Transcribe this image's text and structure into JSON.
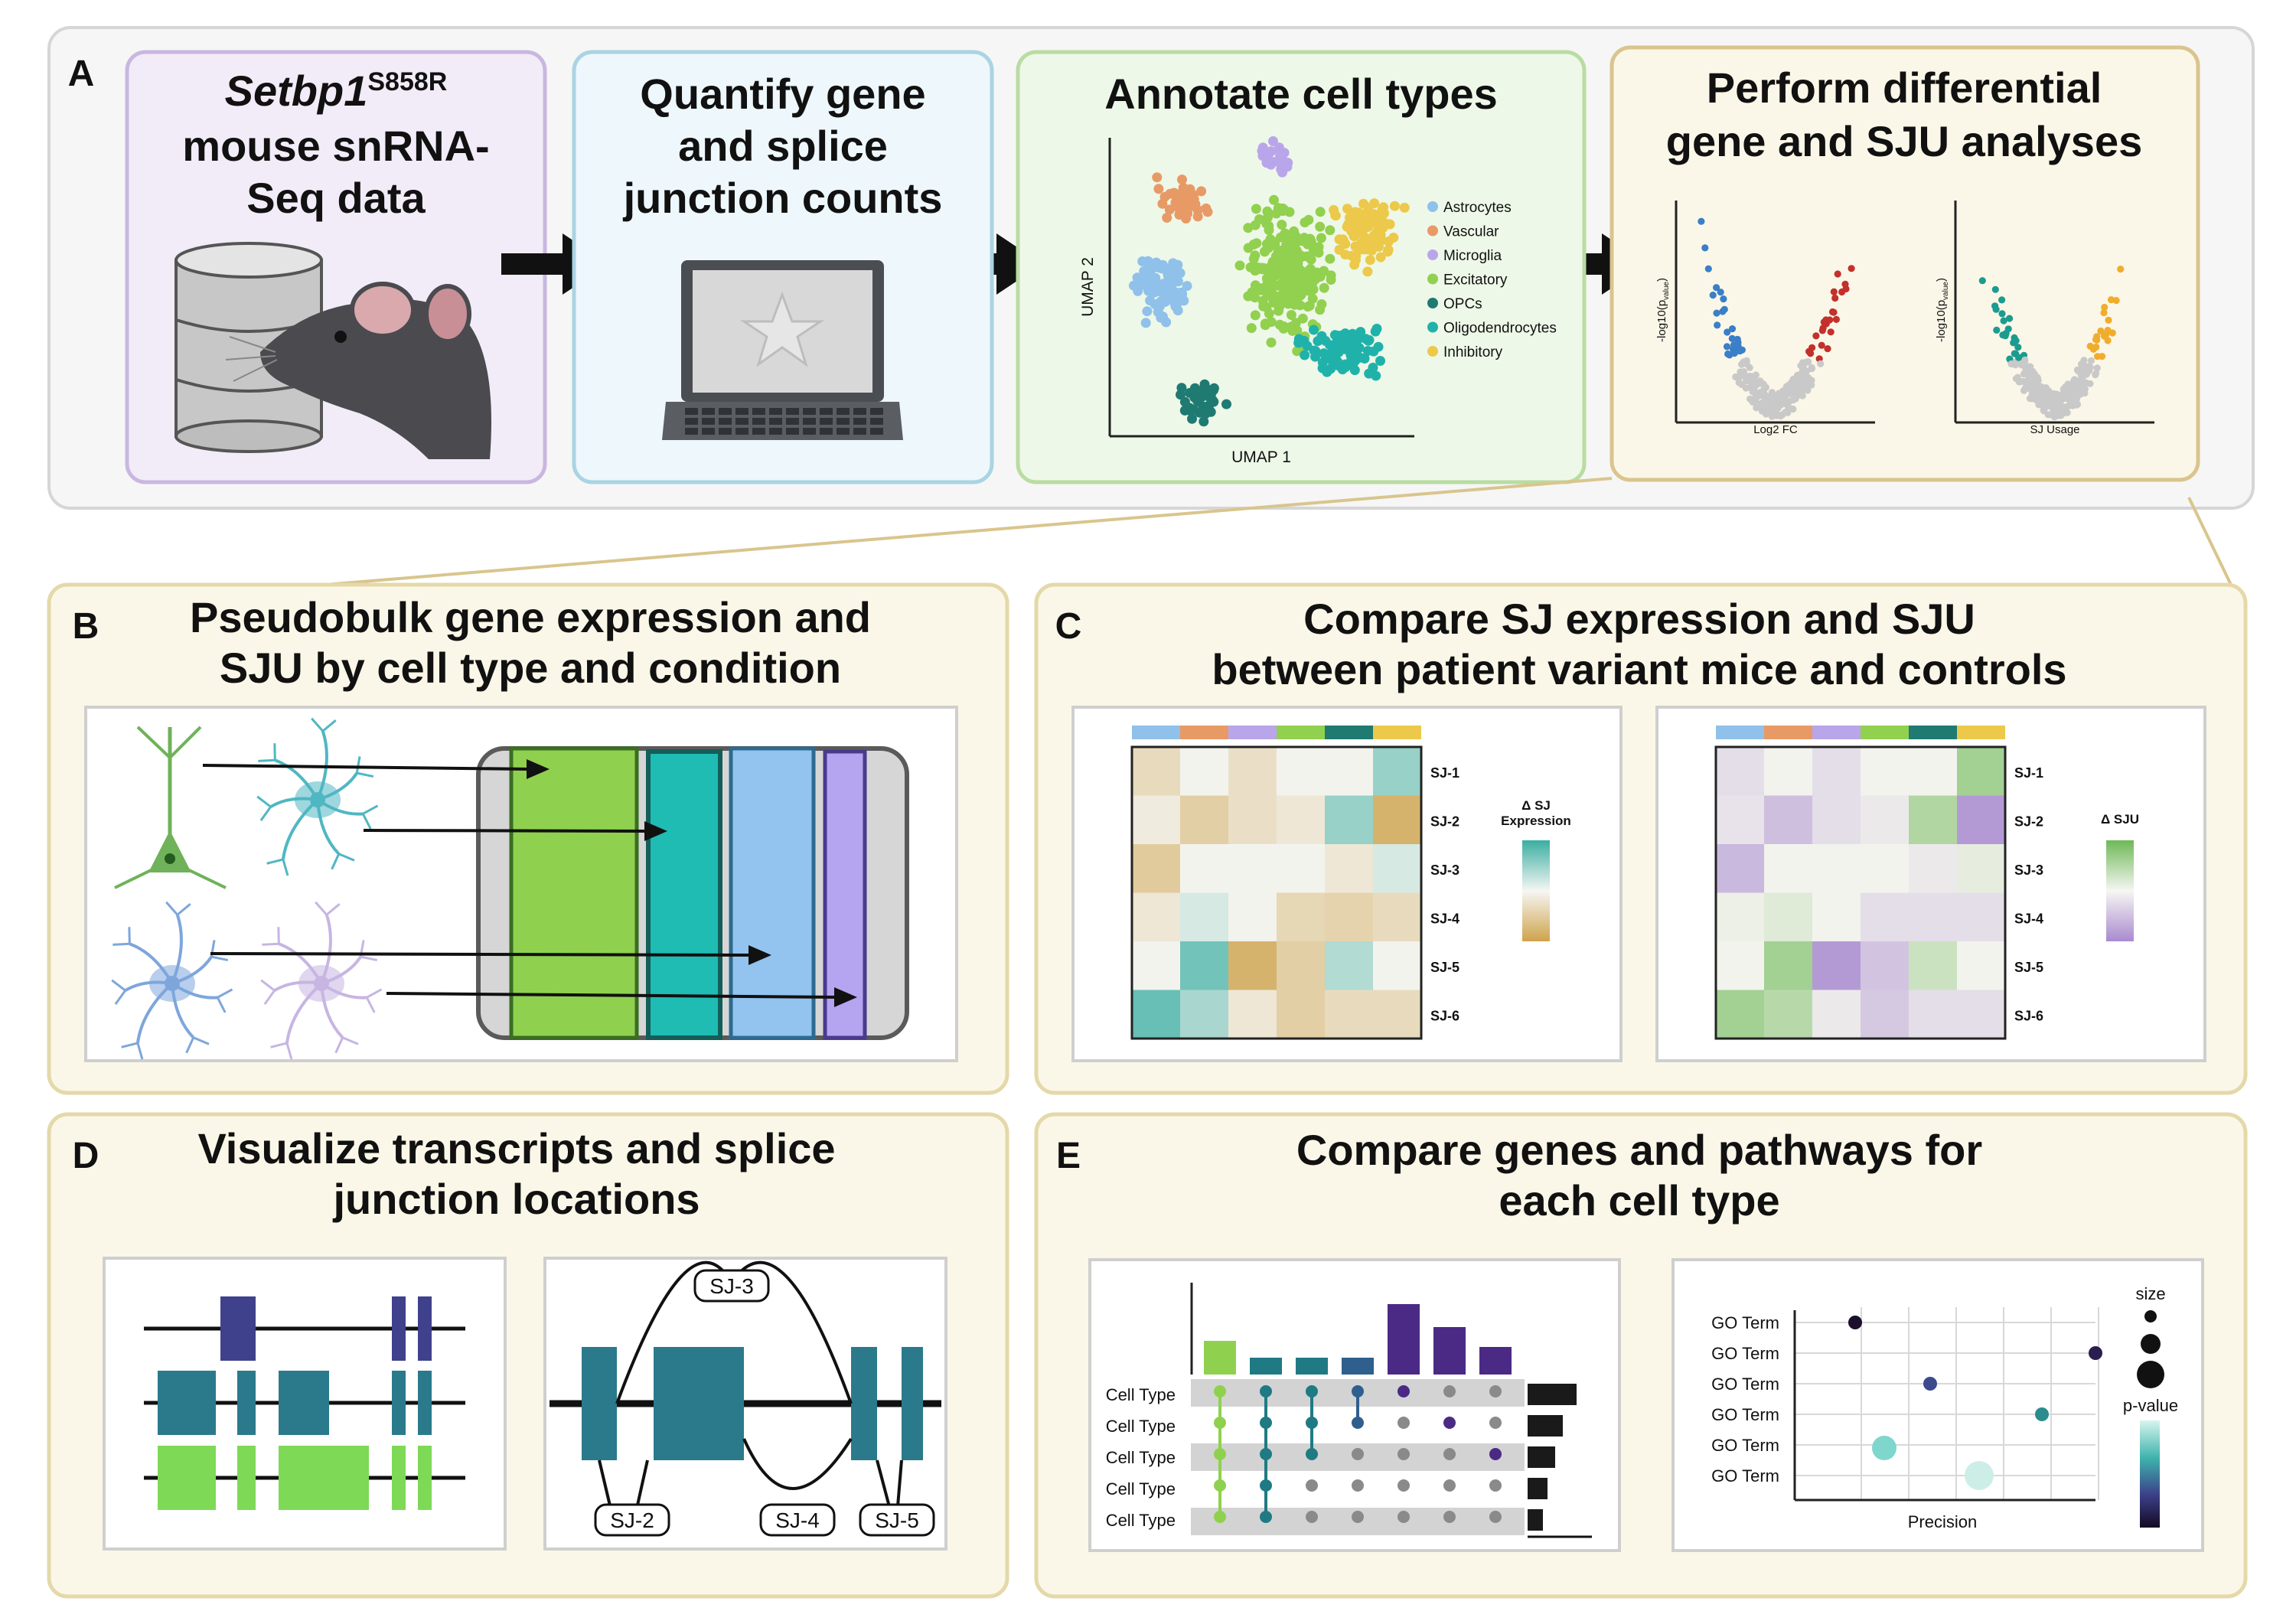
{
  "panel_a": {
    "letter": "A",
    "step1": {
      "gene": "Setbp1",
      "sup": "S858R",
      "lines": [
        "mouse snRNA-",
        "Seq data"
      ]
    },
    "step2": {
      "lines": [
        "Quantify gene",
        "and splice",
        "junction counts"
      ]
    },
    "step3": {
      "title": "Annotate cell types",
      "xlabel": "UMAP 1",
      "ylabel": "UMAP 2",
      "legend": [
        {
          "label": "Astrocytes",
          "color": "#8fc1ea"
        },
        {
          "label": "Vascular",
          "color": "#e89a66"
        },
        {
          "label": "Microglia",
          "color": "#b9a6ea"
        },
        {
          "label": "Excitatory",
          "color": "#92d050"
        },
        {
          "label": "OPCs",
          "color": "#1f7a72"
        },
        {
          "label": "Oligodendrocytes",
          "color": "#20b2aa"
        },
        {
          "label": "Inhibitory",
          "color": "#ecc94b"
        }
      ]
    },
    "step4": {
      "lines": [
        "Perform differential",
        "gene and SJU analyses"
      ],
      "volcano1": {
        "xlabel": "Log2 FC",
        "ylabel": "-log10(p",
        "ysub": "value",
        "yend": ")"
      },
      "volcano2": {
        "xlabel": "SJ Usage",
        "ylabel": "-log10(p",
        "ysub": "value",
        "yend": ")"
      }
    }
  },
  "panel_b": {
    "letter": "B",
    "lines": [
      "Pseudobulk gene expression and",
      "SJU by cell type and condition"
    ]
  },
  "panel_c": {
    "letter": "C",
    "lines": [
      "Compare SJ expression and SJU",
      "between patient variant mice and controls"
    ],
    "row_labels": [
      "SJ-1",
      "SJ-2",
      "SJ-3",
      "SJ-4",
      "SJ-5",
      "SJ-6"
    ],
    "legend1": [
      "Δ SJ",
      "Expression"
    ],
    "legend2": "Δ SJU",
    "top_colors": [
      "#8fc1ea",
      "#e89a66",
      "#b9a6ea",
      "#92d050",
      "#1f7a72",
      "#ecc94b"
    ]
  },
  "panel_d": {
    "letter": "D",
    "lines": [
      "Visualize transcripts and splice",
      "junction locations"
    ],
    "junctions": [
      "SJ-3",
      "SJ-2",
      "SJ-4",
      "SJ-5"
    ]
  },
  "panel_e": {
    "letter": "E",
    "lines": [
      "Compare genes and pathways for",
      "each cell type"
    ],
    "row_label": "Cell Type",
    "go_label": "GO Term",
    "xlabel": "Precision",
    "size_label": "size",
    "pvalue_label": "p-value"
  }
}
